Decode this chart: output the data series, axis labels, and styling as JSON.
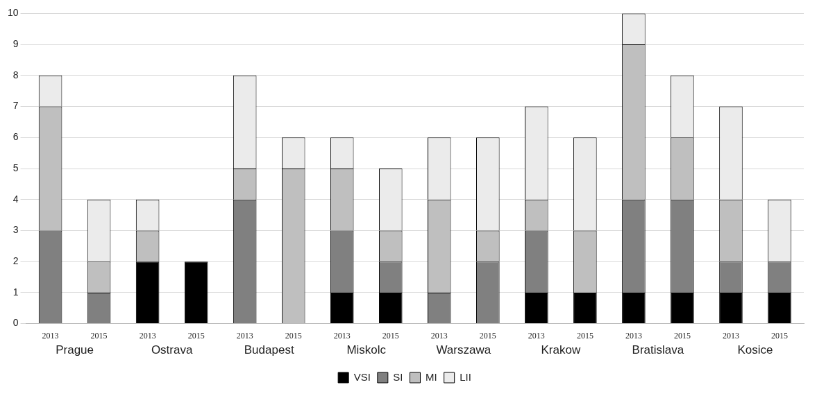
{
  "chart_data": {
    "type": "bar",
    "stacked": true,
    "categories": [
      "2013",
      "2015",
      "2013",
      "2015",
      "2013",
      "2015",
      "2013",
      "2015",
      "2013",
      "2015",
      "2013",
      "2015",
      "2013",
      "2015",
      "2013",
      "2015"
    ],
    "annotations": [
      "Prague",
      "Ostrava",
      "Budapest",
      "Miskolc",
      "Warszawa",
      "Krakow",
      "Bratislava",
      "Kosice"
    ],
    "series": [
      {
        "name": "VSI",
        "color": "#000000",
        "values": [
          0,
          0,
          2,
          2,
          0,
          0,
          1,
          1,
          0,
          0,
          1,
          1,
          1,
          1,
          1,
          1
        ]
      },
      {
        "name": "SI",
        "color": "#808080",
        "values": [
          3,
          1,
          0,
          0,
          4,
          0,
          2,
          1,
          1,
          2,
          2,
          0,
          3,
          3,
          1,
          1
        ]
      },
      {
        "name": "MI",
        "color": "#bfbfbf",
        "values": [
          4,
          1,
          1,
          0,
          1,
          5,
          2,
          1,
          3,
          1,
          1,
          2,
          5,
          2,
          2,
          0
        ]
      },
      {
        "name": "LII",
        "color": "#ebebeb",
        "values": [
          1,
          2,
          1,
          0,
          3,
          1,
          1,
          2,
          2,
          3,
          3,
          3,
          1,
          2,
          3,
          2
        ]
      }
    ],
    "ylim": [
      0,
      10
    ],
    "yticks": [
      0,
      1,
      2,
      3,
      4,
      5,
      6,
      7,
      8,
      9,
      10
    ],
    "grid": "y",
    "legend": "bottom"
  }
}
